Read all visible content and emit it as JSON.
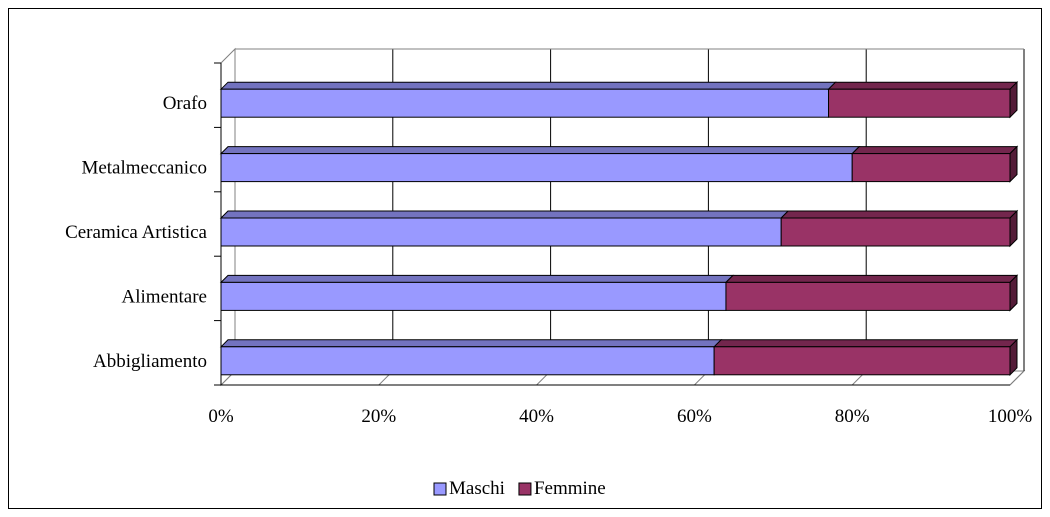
{
  "chart_data": {
    "type": "bar",
    "orientation": "horizontal",
    "stacked": "percent",
    "three_d": true,
    "categories": [
      "Orafo",
      "Metalmeccanico",
      "Ceramica Artistica",
      "Alimentare",
      "Abbigliamento"
    ],
    "series": [
      {
        "name": "Maschi",
        "color": "#9999ff",
        "values": [
          77,
          80,
          71,
          64,
          62.5
        ]
      },
      {
        "name": "Femmine",
        "color": "#993366",
        "values": [
          23,
          20,
          29,
          36,
          37.5
        ]
      }
    ],
    "x_ticks": [
      "0%",
      "20%",
      "40%",
      "60%",
      "80%",
      "100%"
    ],
    "xlim": [
      0,
      100
    ],
    "grid": "vertical",
    "legend_position": "bottom"
  }
}
